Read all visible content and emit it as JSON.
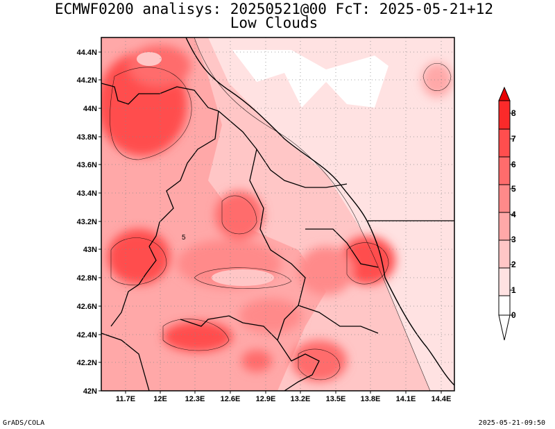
{
  "header": {
    "title_line1": "ECMWF0200 analisys: 20250521@00 FcT: 2025-05-21+12",
    "title_line2": "Low Clouds"
  },
  "map": {
    "lat_ticks": [
      "42N",
      "42.2N",
      "42.4N",
      "42.6N",
      "42.8N",
      "43N",
      "43.2N",
      "43.4N",
      "43.6N",
      "43.8N",
      "44N",
      "44.2N",
      "44.4N"
    ],
    "lon_ticks": [
      "11.7E",
      "12E",
      "12.3E",
      "12.6E",
      "12.9E",
      "13.2E",
      "13.5E",
      "13.8E",
      "14.1E",
      "14.4E"
    ],
    "contour_label": "5",
    "extent": {
      "lon_min": 11.5,
      "lon_max": 14.55,
      "lat_min": 42.0,
      "lat_max": 44.5
    }
  },
  "colorbar": {
    "levels": [
      "0",
      "1",
      "2",
      "3",
      "4",
      "5",
      "6",
      "7",
      "8"
    ],
    "colors": [
      "#ffffff",
      "#ffe2e2",
      "#ffc6c6",
      "#ffa8a8",
      "#ff8a8a",
      "#ff6c6c",
      "#ff4e4e",
      "#fb2a2a",
      "#e80000"
    ]
  },
  "footer": {
    "left": "GrADS/COLA",
    "right": "2025-05-21-09:50"
  }
}
